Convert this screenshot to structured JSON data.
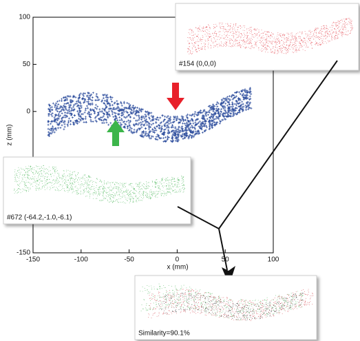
{
  "axes": {
    "xlabel": "x (mm)",
    "ylabel": "z (mm)",
    "xlim": [
      -150,
      100
    ],
    "ylim": [
      -150,
      100
    ],
    "xticks": [
      -150,
      -100,
      -50,
      0,
      50,
      100
    ],
    "yticks": [
      100,
      50,
      0,
      -150
    ]
  },
  "insets": [
    {
      "label": "#154 (0,0,0)"
    },
    {
      "label": "#672 (-64.2,-1.0,-6.1)"
    },
    {
      "label": "Similarity=90.1%"
    }
  ]
}
